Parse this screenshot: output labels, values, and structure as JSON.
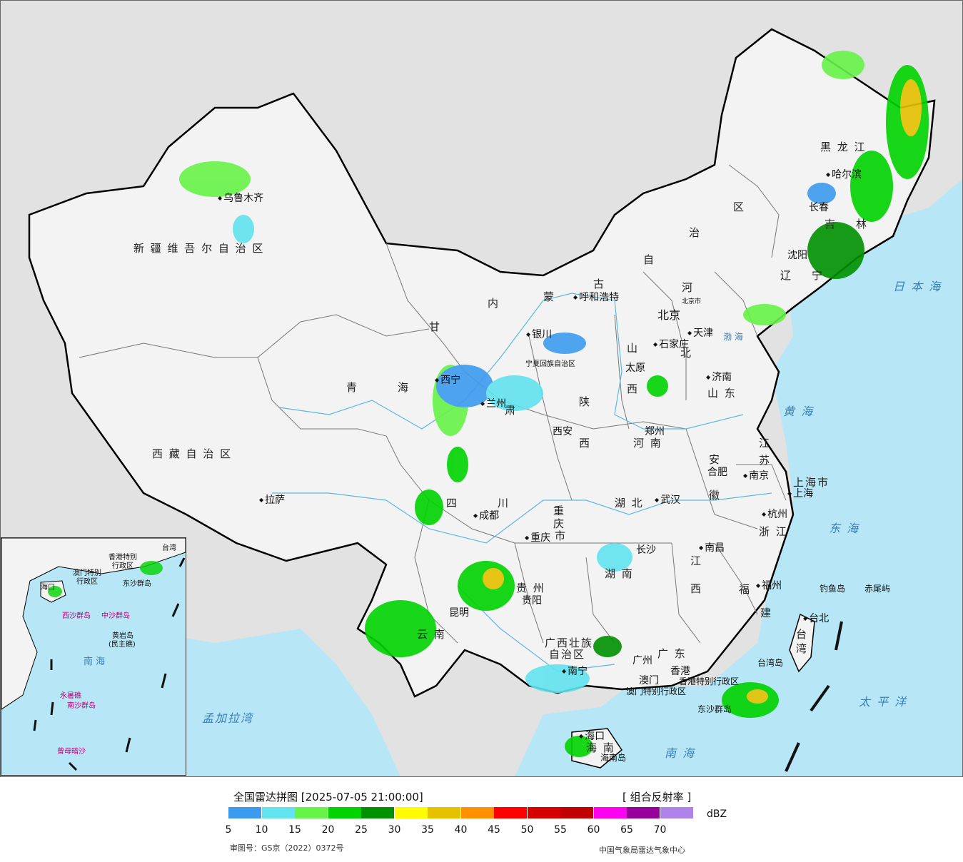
{
  "map": {
    "regions": {
      "xinjiang": "新 疆 维 吾 尔 自 治 区",
      "xizang": "西 藏 自 治 区",
      "qinghai_1": "青",
      "qinghai_2": "海",
      "gansu_1": "甘",
      "gansu_2": "肃",
      "neimenggu_1": "内",
      "neimenggu_2": "蒙",
      "neimenggu_3": "古",
      "neimenggu_4": "自",
      "neimenggu_5": "治",
      "neimenggu_6": "区",
      "heilongjiang": "黑 龙 江",
      "jilin_1": "吉",
      "jilin_2": "林",
      "liaoning_1": "辽",
      "liaoning_2": "宁",
      "hebei_1": "河",
      "hebei_2": "北",
      "shanxi_1": "山",
      "shanxi_2": "西",
      "shaanxi_1": "陕",
      "shaanxi_2": "西",
      "shandong": "山 东",
      "henan": "河 南",
      "jiangsu_1": "江",
      "jiangsu_2": "苏",
      "anhui_1": "安",
      "anhui_2": "徽",
      "hubei": "湖 北",
      "sichuan_1": "四",
      "sichuan_2": "川",
      "chongqing_1": "重",
      "chongqing_2": "庆",
      "chongqing_3": "市",
      "zhejiang": "浙 江",
      "jiangxi_1": "江",
      "jiangxi_2": "西",
      "hunan": "湖 南",
      "guizhou": "贵 州",
      "yunnan": "云 南",
      "fujian_1": "福",
      "fujian_2": "建",
      "guangxi_1": "广西壮族",
      "guangxi_2": "自治区",
      "guangdong": "广 东",
      "hainan": "海 南",
      "taiwan_1": "台",
      "taiwan_2": "湾",
      "shanghai": "上海市",
      "ningxia": "宁夏回族自治区",
      "hongkong": "香港特别行政区",
      "macau": "澳门特别行政区"
    },
    "seas": {
      "japan_sea": "日 本 海",
      "yellow_sea": "黄 海",
      "east_sea": "东 海",
      "pacific": "太 平 洋",
      "south_sea": "南 海",
      "bay_of_bengal": "孟加拉湾",
      "bohai": "渤 海"
    },
    "cities": [
      {
        "name": "乌鲁木齐"
      },
      {
        "name": "拉萨"
      },
      {
        "name": "西宁"
      },
      {
        "name": "兰州"
      },
      {
        "name": "银川"
      },
      {
        "name": "呼和浩特"
      },
      {
        "name": "北京"
      },
      {
        "name": "天津"
      },
      {
        "name": "石家庄"
      },
      {
        "name": "太原"
      },
      {
        "name": "济南"
      },
      {
        "name": "郑州"
      },
      {
        "name": "西安"
      },
      {
        "name": "南京"
      },
      {
        "name": "合肥"
      },
      {
        "name": "上海"
      },
      {
        "name": "杭州"
      },
      {
        "name": "武汉"
      },
      {
        "name": "成都"
      },
      {
        "name": "重庆"
      },
      {
        "name": "长沙"
      },
      {
        "name": "南昌"
      },
      {
        "name": "福州"
      },
      {
        "name": "贵阳"
      },
      {
        "name": "昆明"
      },
      {
        "name": "南宁"
      },
      {
        "name": "广州"
      },
      {
        "name": "香港"
      },
      {
        "name": "澳门"
      },
      {
        "name": "海口"
      },
      {
        "name": "台北"
      },
      {
        "name": "哈尔滨"
      },
      {
        "name": "长春"
      },
      {
        "name": "沈阳"
      }
    ],
    "islands": {
      "diaoyu": "钓鱼岛",
      "chiwei": "赤尾屿",
      "taiwan_island": "台湾岛",
      "dongsha": "东沙群岛",
      "hainan_island": "海南岛"
    },
    "capital_small": "北京市"
  },
  "inset": {
    "labels": {
      "hongkong": "香港特别",
      "hongkong_2": "行政区",
      "macau": "澳门特别",
      "macau_2": "行政区",
      "taiwan": "台湾",
      "dongsha": "东沙群岛",
      "haikou": "海口",
      "xisha": "西沙群岛",
      "zhongsha": "中沙群岛",
      "huangyan": "黄岩岛",
      "huangyan_2": "(民主礁)",
      "south_sea": "南 海",
      "yongshu": "永暑礁",
      "nansha": "南沙群岛",
      "zengmu": "曾母暗沙"
    }
  },
  "legend": {
    "title": "全国雷达拼图 [2025-07-05 21:00:00]",
    "product": "[ 组合反射率 ]",
    "unit": "dBZ",
    "colors": [
      "#3d9bef",
      "#62e3ee",
      "#67f348",
      "#00d300",
      "#009100",
      "#fffb00",
      "#e6c100",
      "#ff9000",
      "#ff0000",
      "#d50000",
      "#c10000",
      "#ff00f0",
      "#96009b",
      "#b083ea"
    ],
    "ticks": [
      "5",
      "10",
      "15",
      "20",
      "25",
      "30",
      "35",
      "40",
      "45",
      "50",
      "55",
      "60",
      "65",
      "70"
    ],
    "approval": "审图号：GS京（2022）0372号",
    "source": "中国气象局雷达气象中心"
  }
}
